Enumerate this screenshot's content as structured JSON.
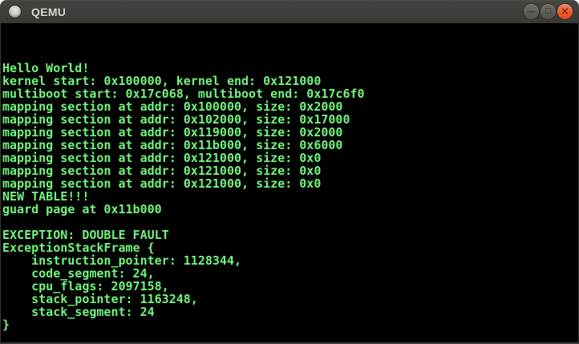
{
  "window": {
    "title": "QEMU",
    "icon": "qemu-window-icon",
    "controls": [
      {
        "name": "minimize-icon",
        "glyph": "—"
      },
      {
        "name": "maximize-icon",
        "glyph": "□"
      },
      {
        "name": "close-icon",
        "glyph": "×"
      }
    ]
  },
  "colors": {
    "titlebar_bg": "#403e3a",
    "titlebar_text": "#dcd8d1",
    "button_gray": "#605e57",
    "close_button_orange": "#ea5b2e",
    "terminal_bg": "#000000",
    "terminal_green": "#72f57c"
  },
  "terminal": {
    "lines": [
      "",
      "",
      "",
      "Hello World!",
      "kernel start: 0x100000, kernel end: 0x121000",
      "multiboot start: 0x17c068, multiboot end: 0x17c6f0",
      "mapping section at addr: 0x100000, size: 0x2000",
      "mapping section at addr: 0x102000, size: 0x17000",
      "mapping section at addr: 0x119000, size: 0x2000",
      "mapping section at addr: 0x11b000, size: 0x6000",
      "mapping section at addr: 0x121000, size: 0x0",
      "mapping section at addr: 0x121000, size: 0x0",
      "mapping section at addr: 0x121000, size: 0x0",
      "NEW TABLE!!!",
      "guard page at 0x11b000",
      "",
      "EXCEPTION: DOUBLE FAULT",
      "ExceptionStackFrame {",
      "    instruction_pointer: 1128344,",
      "    code_segment: 24,",
      "    cpu_flags: 2097158,",
      "    stack_pointer: 1163248,",
      "    stack_segment: 24",
      "}"
    ]
  }
}
